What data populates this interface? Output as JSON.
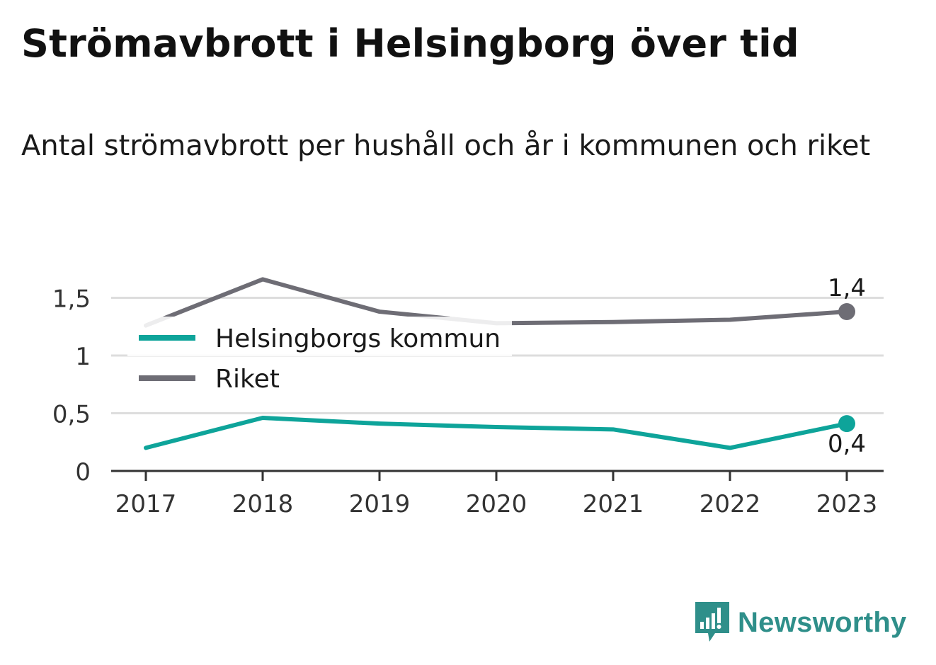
{
  "title": "Strömavbrott i Helsingborg över tid",
  "subtitle": "Antal strömavbrott per hushåll och år i kommunen och riket",
  "brand": {
    "name": "Newsworthy",
    "icon": "bar-chart-bubble-icon",
    "color": "#2f8f8a"
  },
  "chart_data": {
    "type": "line",
    "x": [
      "2017",
      "2018",
      "2019",
      "2020",
      "2021",
      "2022",
      "2023"
    ],
    "series": [
      {
        "name": "Helsingborgs kommun",
        "color": "#0ea49a",
        "values": [
          0.2,
          0.46,
          0.41,
          0.38,
          0.36,
          0.2,
          0.41
        ],
        "end_label": "0,4"
      },
      {
        "name": "Riket",
        "color": "#6e6d75",
        "values": [
          1.26,
          1.66,
          1.38,
          1.28,
          1.29,
          1.31,
          1.38
        ],
        "end_label": "1,4"
      }
    ],
    "yticks": [
      {
        "value": 0,
        "label": "0"
      },
      {
        "value": 0.5,
        "label": "0,5"
      },
      {
        "value": 1,
        "label": "1"
      },
      {
        "value": 1.5,
        "label": "1,5"
      }
    ],
    "ylim": [
      0,
      1.5
    ],
    "grid": true,
    "legend_position": "left, inside plot"
  }
}
